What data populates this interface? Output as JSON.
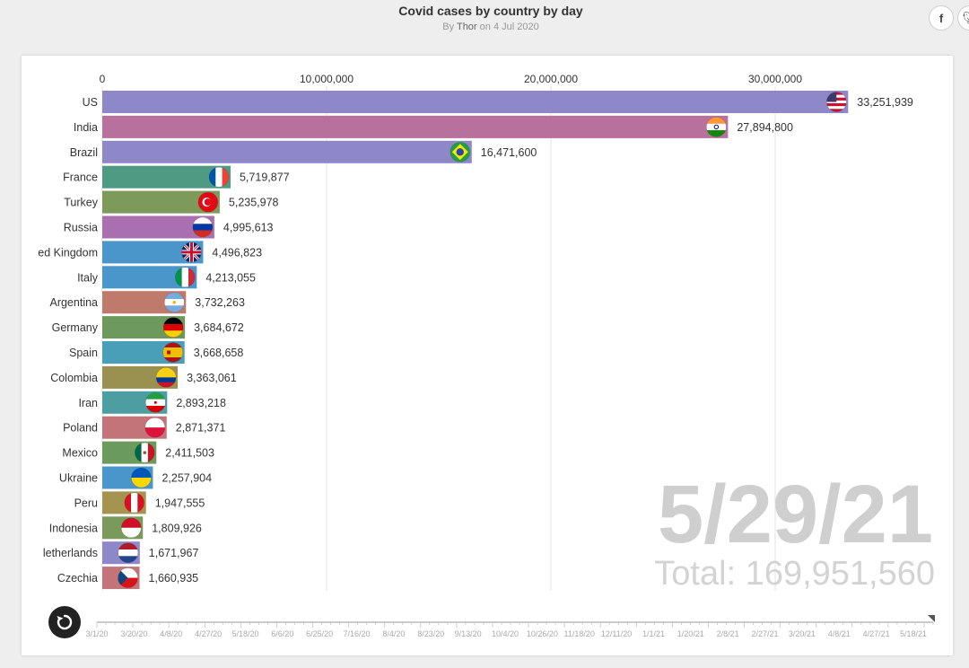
{
  "header": {
    "title": "Covid cases by country by day",
    "by_prefix": "By",
    "author": "Thor",
    "date_text": "on 4 Jul 2020"
  },
  "share": {
    "facebook_icon": "facebook-icon",
    "twitter_icon": "twitter-icon"
  },
  "chart_data": {
    "type": "bar",
    "orientation": "horizontal",
    "title": "Covid cases by country by day",
    "xlim": [
      0,
      36000000
    ],
    "ticks": [
      0,
      10000000,
      20000000,
      30000000
    ],
    "tick_labels": [
      "0",
      "10,000,000",
      "20,000,000",
      "30,000,000"
    ],
    "grid": true,
    "current_date": "5/29/21",
    "total_label": "Total: 169,951,560",
    "categories": [
      "US",
      "India",
      "Brazil",
      "France",
      "Turkey",
      "Russia",
      "ed Kingdom",
      "Italy",
      "Argentina",
      "Germany",
      "Spain",
      "Colombia",
      "Iran",
      "Poland",
      "Mexico",
      "Ukraine",
      "Peru",
      "Indonesia",
      "letherlands",
      "Czechia"
    ],
    "values": [
      33251939,
      27894800,
      16471600,
      5719877,
      5235978,
      4995613,
      4496823,
      4213055,
      3732263,
      3684672,
      3668658,
      3363061,
      2893218,
      2871371,
      2411503,
      2257904,
      1947555,
      1809926,
      1671967,
      1660935
    ],
    "value_labels": [
      "33,251,939",
      "27,894,800",
      "16,471,600",
      "5,719,877",
      "5,235,978",
      "4,995,613",
      "4,496,823",
      "4,213,055",
      "3,732,263",
      "3,684,672",
      "3,668,658",
      "3,363,061",
      "2,893,218",
      "2,871,371",
      "2,411,503",
      "2,257,904",
      "1,947,555",
      "1,809,926",
      "1,671,967",
      "1,660,935"
    ],
    "colors": [
      "#8e87c8",
      "#b8709c",
      "#8e87c8",
      "#4f9a82",
      "#7d9a5a",
      "#a96fae",
      "#4a95c9",
      "#4a95c9",
      "#bf7a6c",
      "#6d9a5c",
      "#4a9fb8",
      "#9a9150",
      "#4d9ea3",
      "#c27478",
      "#6b9a5d",
      "#4a95c9",
      "#a59450",
      "#7a9a5c",
      "#8e87c8",
      "#c27478"
    ],
    "flags": [
      "us",
      "in",
      "br",
      "fr",
      "tr",
      "ru",
      "gb",
      "it",
      "ar",
      "de",
      "es",
      "co",
      "ir",
      "pl",
      "mx",
      "ua",
      "pe",
      "id",
      "nl",
      "cz"
    ],
    "timeline_labels": [
      "3/1/20",
      "3/20/20",
      "4/8/20",
      "4/27/20",
      "5/18/20",
      "6/6/20",
      "6/25/20",
      "7/16/20",
      "8/4/20",
      "8/23/20",
      "9/13/20",
      "10/4/20",
      "10/26/20",
      "11/18/20",
      "12/11/20",
      "1/1/21",
      "1/20/21",
      "2/8/21",
      "2/27/21",
      "3/20/21",
      "4/8/21",
      "4/27/21",
      "5/18/21"
    ]
  },
  "controls": {
    "replay_icon": "replay-icon"
  }
}
